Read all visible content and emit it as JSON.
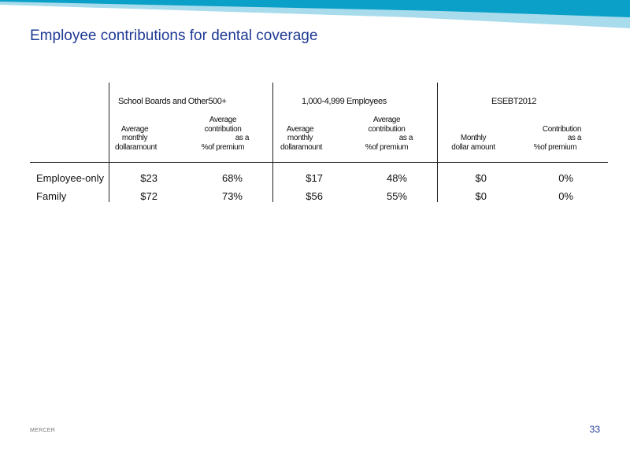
{
  "title": "Employee contributions for dental coverage",
  "table": {
    "groups": [
      "School Boards and Other500+",
      "1,000-4,999 Employees",
      "ESEBT2012"
    ],
    "subheaders": [
      {
        "lines": [
          "",
          "Average",
          "monthly",
          "dollaramount"
        ]
      },
      {
        "lines": [
          "Average",
          "contribution",
          "as a",
          "%of premium"
        ]
      },
      {
        "lines": [
          "",
          "Average",
          "monthly",
          "dollaramount"
        ]
      },
      {
        "lines": [
          "Average",
          "contribution",
          "as a",
          "%of premium"
        ]
      },
      {
        "lines": [
          "",
          "",
          "Monthly",
          "dollar amount"
        ]
      },
      {
        "lines": [
          "",
          "Contribution",
          "as a",
          "%of premium"
        ]
      }
    ],
    "rows": [
      {
        "label": "Employee-only",
        "values": [
          "$23",
          "68%",
          "$17",
          "48%",
          "$0",
          "0%"
        ]
      },
      {
        "label": "Family",
        "values": [
          "$72",
          "73%",
          "$56",
          "55%",
          "$0",
          "0%"
        ]
      }
    ]
  },
  "footer": {
    "brand": "MERCER",
    "page": "33"
  },
  "colors": {
    "banner_dark": "#0aa0c8",
    "banner_light": "#a8dcec",
    "title": "#1f3a93"
  }
}
